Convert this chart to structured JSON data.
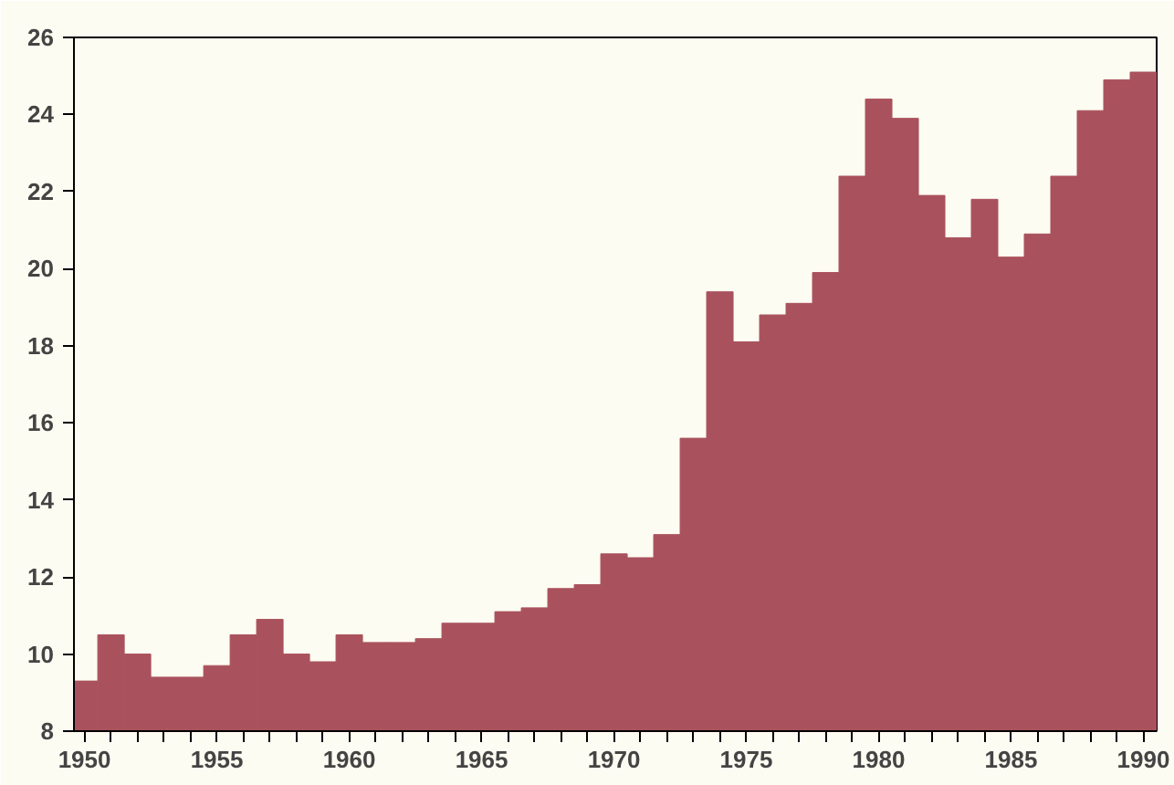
{
  "chart_data": {
    "type": "bar",
    "x": [
      1950,
      1951,
      1952,
      1953,
      1954,
      1955,
      1956,
      1957,
      1958,
      1959,
      1960,
      1961,
      1962,
      1963,
      1964,
      1965,
      1966,
      1967,
      1968,
      1969,
      1970,
      1971,
      1972,
      1973,
      1974,
      1975,
      1976,
      1977,
      1978,
      1979,
      1980,
      1981,
      1982,
      1983,
      1984,
      1985,
      1986,
      1987,
      1988,
      1989,
      1990
    ],
    "values": [
      9.3,
      10.5,
      10.0,
      9.4,
      9.4,
      9.7,
      10.5,
      10.9,
      10.0,
      9.8,
      10.5,
      10.3,
      10.3,
      10.4,
      10.8,
      10.8,
      11.1,
      11.2,
      11.7,
      11.8,
      12.6,
      12.5,
      13.1,
      15.6,
      19.4,
      18.1,
      18.8,
      19.1,
      19.9,
      22.4,
      24.4,
      23.9,
      21.9,
      20.8,
      21.8,
      20.3,
      20.9,
      22.4,
      24.1,
      24.9,
      25.1
    ],
    "color": "#a9525d",
    "xlim": [
      1949.6,
      1990.5
    ],
    "xticks": [
      1950,
      {
        "value": 1951,
        "label": null
      },
      {
        "value": 1952,
        "label": null
      },
      {
        "value": 1953,
        "label": null
      },
      {
        "value": 1954,
        "label": null
      },
      1955,
      {
        "value": 1956,
        "label": null
      },
      {
        "value": 1957,
        "label": null
      },
      {
        "value": 1958,
        "label": null
      },
      {
        "value": 1959,
        "label": null
      },
      1960,
      {
        "value": 1961,
        "label": null
      },
      {
        "value": 1962,
        "label": null
      },
      {
        "value": 1963,
        "label": null
      },
      {
        "value": 1964,
        "label": null
      },
      1965,
      {
        "value": 1966,
        "label": null
      },
      {
        "value": 1967,
        "label": null
      },
      {
        "value": 1968,
        "label": null
      },
      {
        "value": 1969,
        "label": null
      },
      1970,
      {
        "value": 1971,
        "label": null
      },
      {
        "value": 1972,
        "label": null
      },
      {
        "value": 1973,
        "label": null
      },
      {
        "value": 1974,
        "label": null
      },
      1975,
      {
        "value": 1976,
        "label": null
      },
      {
        "value": 1977,
        "label": null
      },
      {
        "value": 1978,
        "label": null
      },
      {
        "value": 1979,
        "label": null
      },
      1980,
      {
        "value": 1981,
        "label": null
      },
      {
        "value": 1982,
        "label": null
      },
      {
        "value": 1983,
        "label": null
      },
      {
        "value": 1984,
        "label": null
      },
      1985,
      {
        "value": 1986,
        "label": null
      },
      {
        "value": 1987,
        "label": null
      },
      {
        "value": 1988,
        "label": null
      },
      {
        "value": 1989,
        "label": null
      },
      1990
    ],
    "ylim": [
      8,
      26
    ],
    "yticks": [
      8,
      10,
      12,
      14,
      16,
      18,
      20,
      22,
      24,
      26
    ],
    "grid": false
  }
}
